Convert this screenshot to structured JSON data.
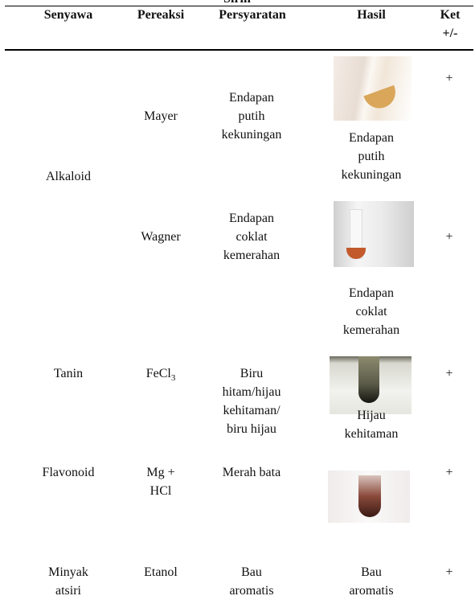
{
  "title_fragment": "Sirih",
  "table": {
    "header": [
      "Senyawa",
      "Pereaksi",
      "Persyaratan",
      "Hasil",
      "Ket +/-"
    ],
    "groups": [
      {
        "senyawa": "Alkaloid",
        "tests": [
          {
            "pereaksi": "Mayer",
            "persyaratan": "Endapan putih kekuningan",
            "hasil": "Endapan putih kekuningan",
            "ket": "+"
          },
          {
            "pereaksi": "Wagner",
            "persyaratan": "Endapan coklat kemerahan",
            "hasil": "Endapan coklat kemerahan",
            "ket": "+"
          }
        ]
      },
      {
        "senyawa": "Tanin",
        "tests": [
          {
            "pereaksi": {
              "text": "FeCl",
              "sub": "3"
            },
            "persyaratan": "Biru hitam/hijau kehitaman/ biru hijau",
            "hasil": "Hijau kehitaman",
            "ket": "+"
          }
        ]
      },
      {
        "senyawa": "Flavonoid",
        "tests": [
          {
            "pereaksi": "Mg + HCl",
            "persyaratan": "Merah bata",
            "hasil": "",
            "ket": "+"
          }
        ]
      },
      {
        "senyawa": "Minyak atsiri",
        "tests": [
          {
            "pereaksi": "Etanol",
            "persyaratan": "Bau aromatis",
            "hasil": "Bau aromatis",
            "ket": "+"
          }
        ]
      }
    ]
  }
}
